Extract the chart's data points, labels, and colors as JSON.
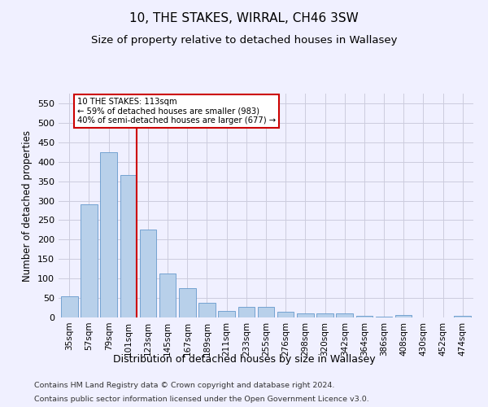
{
  "title": "10, THE STAKES, WIRRAL, CH46 3SW",
  "subtitle": "Size of property relative to detached houses in Wallasey",
  "xlabel": "Distribution of detached houses by size in Wallasey",
  "ylabel": "Number of detached properties",
  "footer1": "Contains HM Land Registry data © Crown copyright and database right 2024.",
  "footer2": "Contains public sector information licensed under the Open Government Licence v3.0.",
  "categories": [
    "35sqm",
    "57sqm",
    "79sqm",
    "101sqm",
    "123sqm",
    "145sqm",
    "167sqm",
    "189sqm",
    "211sqm",
    "233sqm",
    "255sqm",
    "276sqm",
    "298sqm",
    "320sqm",
    "342sqm",
    "364sqm",
    "386sqm",
    "408sqm",
    "430sqm",
    "452sqm",
    "474sqm"
  ],
  "values": [
    55,
    290,
    425,
    365,
    225,
    113,
    75,
    38,
    17,
    27,
    27,
    14,
    10,
    10,
    10,
    5,
    3,
    6,
    0,
    0,
    4
  ],
  "bar_color": "#b8d0ea",
  "bar_edge_color": "#6699cc",
  "vline_x_index": 3,
  "vline_color": "#cc0000",
  "annotation_text": "10 THE STAKES: 113sqm\n← 59% of detached houses are smaller (983)\n40% of semi-detached houses are larger (677) →",
  "annotation_box_color": "#ffffff",
  "annotation_box_edge": "#cc0000",
  "ylim": [
    0,
    575
  ],
  "yticks": [
    0,
    50,
    100,
    150,
    200,
    250,
    300,
    350,
    400,
    450,
    500,
    550
  ],
  "bg_color": "#f0f0ff",
  "grid_color": "#ccccdd",
  "title_fontsize": 11,
  "subtitle_fontsize": 9.5,
  "axis_label_fontsize": 8.5,
  "tick_fontsize": 7.5
}
